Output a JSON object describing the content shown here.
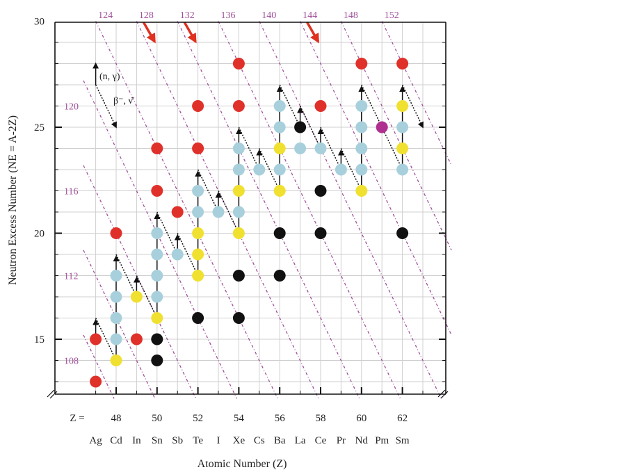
{
  "chart_data": {
    "type": "scatter",
    "xlabel": "Atomic Number (Z)",
    "ylabel": "Neutron Excess Number (NE = A-2Z)",
    "xlim": [
      46.4,
      64.4
    ],
    "ylim": [
      12.2,
      30
    ],
    "z_prefix": "Z =",
    "x_ticks": [
      48,
      50,
      52,
      54,
      56,
      58,
      60,
      62
    ],
    "y_ticks": [
      15,
      20,
      25,
      30
    ],
    "elements": [
      {
        "z": 47,
        "symbol": "Ag"
      },
      {
        "z": 48,
        "symbol": "Cd"
      },
      {
        "z": 49,
        "symbol": "In"
      },
      {
        "z": 50,
        "symbol": "Sn"
      },
      {
        "z": 51,
        "symbol": "Sb"
      },
      {
        "z": 52,
        "symbol": "Te"
      },
      {
        "z": 53,
        "symbol": "I"
      },
      {
        "z": 54,
        "symbol": "Xe"
      },
      {
        "z": 55,
        "symbol": "Cs"
      },
      {
        "z": 56,
        "symbol": "Ba"
      },
      {
        "z": 57,
        "symbol": "La"
      },
      {
        "z": 58,
        "symbol": "Ce"
      },
      {
        "z": 59,
        "symbol": "Pr"
      },
      {
        "z": 60,
        "symbol": "Nd"
      },
      {
        "z": 61,
        "symbol": "Pm"
      },
      {
        "z": 62,
        "symbol": "Sm"
      }
    ],
    "mass_lines": [
      108,
      112,
      116,
      120,
      124,
      128,
      132,
      136,
      140,
      144,
      148,
      152
    ],
    "mass_labels_left": [
      "108",
      "112",
      "116",
      "120"
    ],
    "mass_labels_top": [
      "124",
      "128",
      "132",
      "136",
      "140",
      "144",
      "148",
      "152"
    ],
    "highlight_arrows_mass": [
      128,
      132,
      144
    ],
    "annotations": {
      "capture": "(n, γ)",
      "decay": "β⁻, ν̄"
    },
    "legend_arrows": [
      {
        "x1": 47,
        "y1": 27,
        "x2": 47,
        "y2": 28,
        "style": "solid"
      },
      {
        "x1": 47,
        "y1": 27,
        "x2": 48,
        "y2": 25,
        "style": "dotted"
      }
    ],
    "colors": {
      "red": "#e0302a",
      "yellow": "#f0e030",
      "lightblue": "#a8d0dc",
      "black": "#111111",
      "magenta": "#b03090",
      "mass_line": "#a0509a",
      "highlight_arrow": "#e03020"
    },
    "points": [
      {
        "z": 47,
        "ne": 13,
        "c": "red"
      },
      {
        "z": 47,
        "ne": 15,
        "c": "red"
      },
      {
        "z": 48,
        "ne": 14,
        "c": "yellow"
      },
      {
        "z": 48,
        "ne": 15,
        "c": "lightblue"
      },
      {
        "z": 48,
        "ne": 16,
        "c": "lightblue"
      },
      {
        "z": 48,
        "ne": 17,
        "c": "lightblue"
      },
      {
        "z": 48,
        "ne": 18,
        "c": "lightblue"
      },
      {
        "z": 48,
        "ne": 20,
        "c": "red"
      },
      {
        "z": 49,
        "ne": 15,
        "c": "red"
      },
      {
        "z": 49,
        "ne": 17,
        "c": "yellow"
      },
      {
        "z": 50,
        "ne": 14,
        "c": "black"
      },
      {
        "z": 50,
        "ne": 15,
        "c": "black"
      },
      {
        "z": 50,
        "ne": 16,
        "c": "yellow"
      },
      {
        "z": 50,
        "ne": 17,
        "c": "lightblue"
      },
      {
        "z": 50,
        "ne": 18,
        "c": "lightblue"
      },
      {
        "z": 50,
        "ne": 19,
        "c": "lightblue"
      },
      {
        "z": 50,
        "ne": 20,
        "c": "lightblue"
      },
      {
        "z": 50,
        "ne": 22,
        "c": "red"
      },
      {
        "z": 50,
        "ne": 24,
        "c": "red"
      },
      {
        "z": 51,
        "ne": 19,
        "c": "lightblue"
      },
      {
        "z": 51,
        "ne": 21,
        "c": "red"
      },
      {
        "z": 52,
        "ne": 16,
        "c": "black"
      },
      {
        "z": 52,
        "ne": 18,
        "c": "yellow"
      },
      {
        "z": 52,
        "ne": 19,
        "c": "yellow"
      },
      {
        "z": 52,
        "ne": 20,
        "c": "yellow"
      },
      {
        "z": 52,
        "ne": 21,
        "c": "lightblue"
      },
      {
        "z": 52,
        "ne": 22,
        "c": "lightblue"
      },
      {
        "z": 52,
        "ne": 24,
        "c": "red"
      },
      {
        "z": 52,
        "ne": 26,
        "c": "red"
      },
      {
        "z": 53,
        "ne": 21,
        "c": "lightblue"
      },
      {
        "z": 54,
        "ne": 16,
        "c": "black"
      },
      {
        "z": 54,
        "ne": 18,
        "c": "black"
      },
      {
        "z": 54,
        "ne": 20,
        "c": "yellow"
      },
      {
        "z": 54,
        "ne": 21,
        "c": "lightblue"
      },
      {
        "z": 54,
        "ne": 22,
        "c": "yellow"
      },
      {
        "z": 54,
        "ne": 23,
        "c": "lightblue"
      },
      {
        "z": 54,
        "ne": 24,
        "c": "lightblue"
      },
      {
        "z": 54,
        "ne": 26,
        "c": "red"
      },
      {
        "z": 54,
        "ne": 28,
        "c": "red"
      },
      {
        "z": 55,
        "ne": 23,
        "c": "lightblue"
      },
      {
        "z": 56,
        "ne": 18,
        "c": "black"
      },
      {
        "z": 56,
        "ne": 20,
        "c": "black"
      },
      {
        "z": 56,
        "ne": 22,
        "c": "yellow"
      },
      {
        "z": 56,
        "ne": 23,
        "c": "lightblue"
      },
      {
        "z": 56,
        "ne": 24,
        "c": "yellow"
      },
      {
        "z": 56,
        "ne": 25,
        "c": "lightblue"
      },
      {
        "z": 56,
        "ne": 26,
        "c": "lightblue"
      },
      {
        "z": 57,
        "ne": 24,
        "c": "lightblue"
      },
      {
        "z": 57,
        "ne": 25,
        "c": "black"
      },
      {
        "z": 58,
        "ne": 20,
        "c": "black"
      },
      {
        "z": 58,
        "ne": 22,
        "c": "black"
      },
      {
        "z": 58,
        "ne": 24,
        "c": "lightblue"
      },
      {
        "z": 58,
        "ne": 26,
        "c": "red"
      },
      {
        "z": 59,
        "ne": 23,
        "c": "lightblue"
      },
      {
        "z": 60,
        "ne": 22,
        "c": "yellow"
      },
      {
        "z": 60,
        "ne": 23,
        "c": "lightblue"
      },
      {
        "z": 60,
        "ne": 24,
        "c": "lightblue"
      },
      {
        "z": 60,
        "ne": 25,
        "c": "lightblue"
      },
      {
        "z": 60,
        "ne": 26,
        "c": "lightblue"
      },
      {
        "z": 60,
        "ne": 28,
        "c": "red"
      },
      {
        "z": 61,
        "ne": 25,
        "c": "magenta"
      },
      {
        "z": 62,
        "ne": 20,
        "c": "black"
      },
      {
        "z": 62,
        "ne": 23,
        "c": "lightblue"
      },
      {
        "z": 62,
        "ne": 24,
        "c": "yellow"
      },
      {
        "z": 62,
        "ne": 25,
        "c": "lightblue"
      },
      {
        "z": 62,
        "ne": 26,
        "c": "yellow"
      },
      {
        "z": 62,
        "ne": 28,
        "c": "red"
      }
    ],
    "solid_arrows": [
      {
        "z": 47,
        "from": 15,
        "to": 16
      },
      {
        "z": 48,
        "from": 14,
        "to": 19
      },
      {
        "z": 49,
        "from": 17,
        "to": 18
      },
      {
        "z": 50,
        "from": 16,
        "to": 21
      },
      {
        "z": 51,
        "from": 19,
        "to": 20
      },
      {
        "z": 52,
        "from": 18,
        "to": 23
      },
      {
        "z": 53,
        "from": 21,
        "to": 22
      },
      {
        "z": 54,
        "from": 20,
        "to": 25
      },
      {
        "z": 55,
        "from": 23,
        "to": 24
      },
      {
        "z": 56,
        "from": 22,
        "to": 27
      },
      {
        "z": 57,
        "from": 25,
        "to": 26
      },
      {
        "z": 58,
        "from": 24,
        "to": 25
      },
      {
        "z": 59,
        "from": 23,
        "to": 24
      },
      {
        "z": 60,
        "from": 22,
        "to": 27
      },
      {
        "z": 62,
        "from": 23,
        "to": 27
      }
    ],
    "dotted_arrows": [
      {
        "z1": 47,
        "ne1": 16,
        "z2": 48,
        "ne2": 14
      },
      {
        "z1": 48,
        "ne1": 19,
        "z2": 49,
        "ne2": 17
      },
      {
        "z1": 49,
        "ne1": 18,
        "z2": 50,
        "ne2": 16
      },
      {
        "z1": 50,
        "ne1": 21,
        "z2": 51,
        "ne2": 19
      },
      {
        "z1": 51,
        "ne1": 20,
        "z2": 52,
        "ne2": 18
      },
      {
        "z1": 52,
        "ne1": 23,
        "z2": 53,
        "ne2": 21
      },
      {
        "z1": 53,
        "ne1": 22,
        "z2": 54,
        "ne2": 20
      },
      {
        "z1": 54,
        "ne1": 25,
        "z2": 55,
        "ne2": 23
      },
      {
        "z1": 55,
        "ne1": 24,
        "z2": 56,
        "ne2": 22
      },
      {
        "z1": 56,
        "ne1": 27,
        "z2": 57,
        "ne2": 25
      },
      {
        "z1": 57,
        "ne1": 26,
        "z2": 58,
        "ne2": 24
      },
      {
        "z1": 58,
        "ne1": 25,
        "z2": 59,
        "ne2": 23
      },
      {
        "z1": 59,
        "ne1": 24,
        "z2": 60,
        "ne2": 22
      },
      {
        "z1": 60,
        "ne1": 27,
        "z2": 61,
        "ne2": 25
      },
      {
        "z1": 61,
        "ne1": 25,
        "z2": 62,
        "ne2": 23
      },
      {
        "z1": 62,
        "ne1": 27,
        "z2": 63,
        "ne2": 25
      }
    ]
  }
}
